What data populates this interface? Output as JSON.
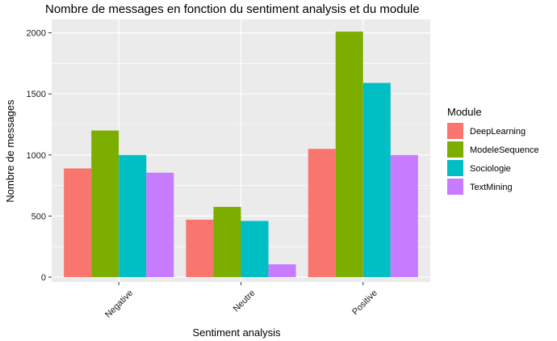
{
  "chart_data": {
    "type": "bar",
    "title": "Nombre de messages en fonction du sentiment analysis et du module",
    "xlabel": "Sentiment analysis",
    "ylabel": "Nombre de messages",
    "categories": [
      "Negative",
      "Neutre",
      "Positive"
    ],
    "series": [
      {
        "name": "DeepLearning",
        "color": "#F8766D",
        "values": [
          890,
          470,
          1050
        ]
      },
      {
        "name": "ModeleSequence",
        "color": "#7CAE00",
        "values": [
          1200,
          575,
          2010
        ]
      },
      {
        "name": "Sociologie",
        "color": "#00BFC4",
        "values": [
          1000,
          460,
          1590
        ]
      },
      {
        "name": "TextMining",
        "color": "#C77CFF",
        "values": [
          855,
          105,
          1000
        ]
      }
    ],
    "ylim": [
      -40,
      2110
    ],
    "yticks": [
      0,
      500,
      1000,
      1500,
      2000
    ],
    "grid": true,
    "legend": {
      "title": "Module",
      "position": "right"
    },
    "panel_background": "#EBEBEB",
    "gridline_color": "#FFFFFF"
  }
}
